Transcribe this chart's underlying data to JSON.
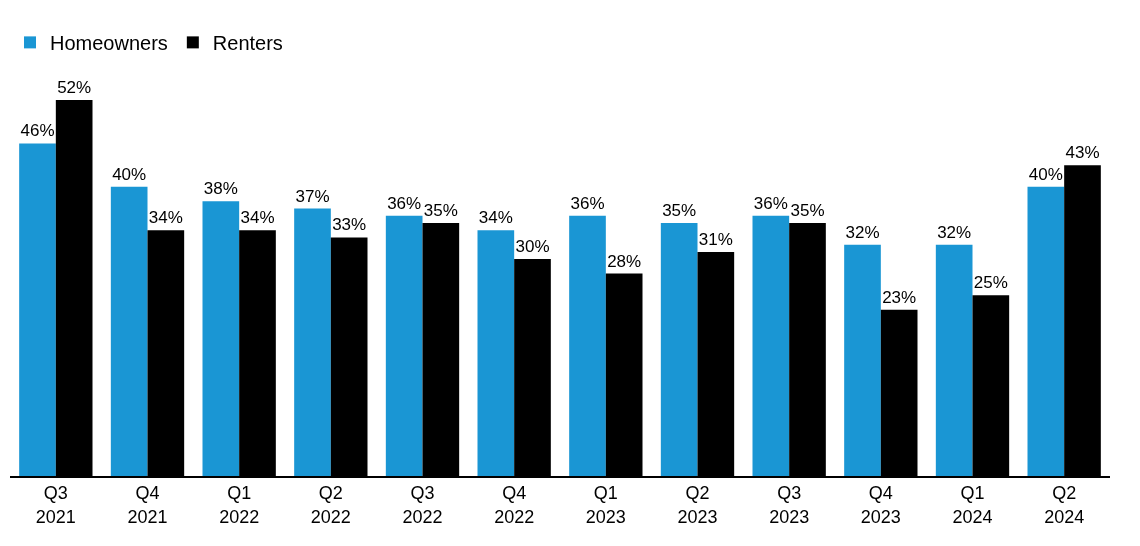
{
  "chart_data": {
    "type": "bar",
    "categories": [
      "Q3\n2021",
      "Q4\n2021",
      "Q1\n2022",
      "Q2\n2022",
      "Q3\n2022",
      "Q4\n2022",
      "Q1\n2023",
      "Q2\n2023",
      "Q3\n2023",
      "Q4\n2023",
      "Q1\n2024",
      "Q2\n2024"
    ],
    "series": [
      {
        "name": "Homeowners",
        "color": "#1a96d4",
        "values": [
          46,
          40,
          38,
          37,
          36,
          34,
          36,
          35,
          36,
          32,
          32,
          40
        ],
        "value_labels": [
          "46%",
          "40%",
          "38%",
          "37%",
          "36%",
          "34%",
          "36%",
          "35%",
          "36%",
          "32%",
          "32%",
          "40%"
        ]
      },
      {
        "name": "Renters",
        "color": "#000000",
        "values": [
          52,
          34,
          34,
          33,
          35,
          30,
          28,
          31,
          35,
          23,
          25,
          43
        ],
        "value_labels": [
          "52%",
          "34%",
          "34%",
          "33%",
          "35%",
          "30%",
          "28%",
          "31%",
          "35%",
          "23%",
          "25%",
          "43%"
        ]
      }
    ],
    "legend": "top left"
  }
}
